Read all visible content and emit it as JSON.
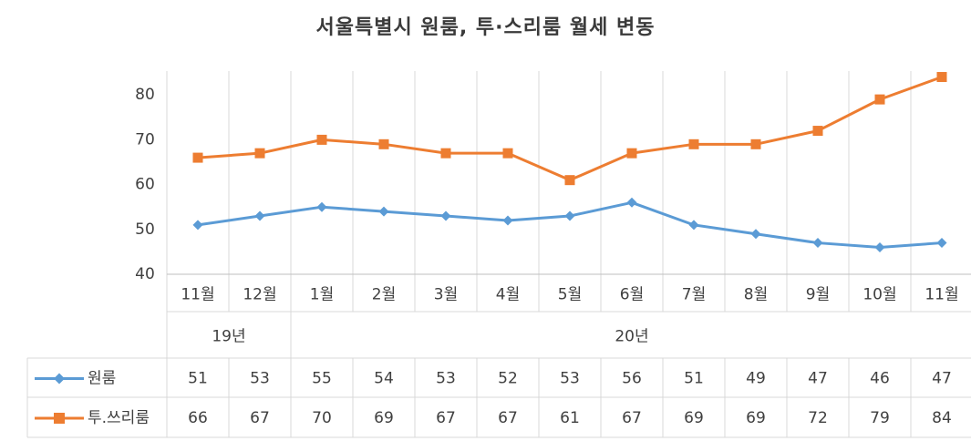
{
  "chart_data": {
    "type": "line",
    "title": "서울특별시 원룸, 투·스리룸 월세 변동",
    "categories": [
      "11월",
      "12월",
      "1월",
      "2월",
      "3월",
      "4월",
      "5월",
      "6월",
      "7월",
      "8월",
      "9월",
      "10월",
      "11월"
    ],
    "year_groups": [
      {
        "label": "19년",
        "span": 2
      },
      {
        "label": "20년",
        "span": 11
      }
    ],
    "ylim": [
      40,
      85
    ],
    "yticks": [
      40,
      50,
      60,
      70,
      80
    ],
    "grid": "vertical",
    "legend": "data-table",
    "series": [
      {
        "name": "원룸",
        "color": "#5b9bd5",
        "marker": "diamond",
        "values": [
          51,
          53,
          55,
          54,
          53,
          52,
          53,
          56,
          51,
          49,
          47,
          46,
          47
        ]
      },
      {
        "name": "투.쓰리룸",
        "color": "#ed7d31",
        "marker": "square",
        "values": [
          66,
          67,
          70,
          69,
          67,
          67,
          61,
          67,
          69,
          69,
          72,
          79,
          84
        ]
      }
    ]
  }
}
